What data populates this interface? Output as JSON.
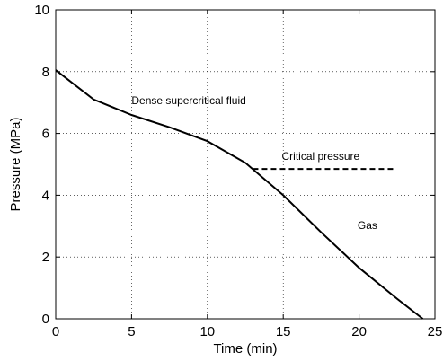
{
  "chart_data": {
    "type": "line",
    "title": "",
    "xlabel": "Time (min)",
    "ylabel": "Pressure (MPa)",
    "xlim": [
      0,
      25
    ],
    "ylim": [
      0,
      10
    ],
    "x_ticks": [
      0,
      5,
      10,
      15,
      20,
      25
    ],
    "y_ticks": [
      0,
      2,
      4,
      6,
      8,
      10
    ],
    "grid": true,
    "series": [
      {
        "x": [
          0,
          2.5,
          5,
          7.5,
          10,
          12.5,
          15,
          17.5,
          20,
          22.5,
          24.2
        ],
        "y": [
          8.05,
          7.1,
          6.6,
          6.2,
          5.75,
          5.05,
          4.0,
          2.8,
          1.65,
          0.65,
          0.0
        ],
        "color": "#000000"
      }
    ],
    "reference_lines": [
      {
        "label": "Critical pressure",
        "y": 4.85,
        "x_start": 13.0,
        "x_end": 22.3,
        "style": "dashed"
      }
    ],
    "annotations": [
      {
        "text": "Dense supercritical fluid",
        "x": 5.0,
        "y": 6.95
      },
      {
        "text": "Critical pressure",
        "x": 14.9,
        "y": 5.15
      },
      {
        "text": "Gas",
        "x": 19.9,
        "y": 2.9
      }
    ]
  }
}
